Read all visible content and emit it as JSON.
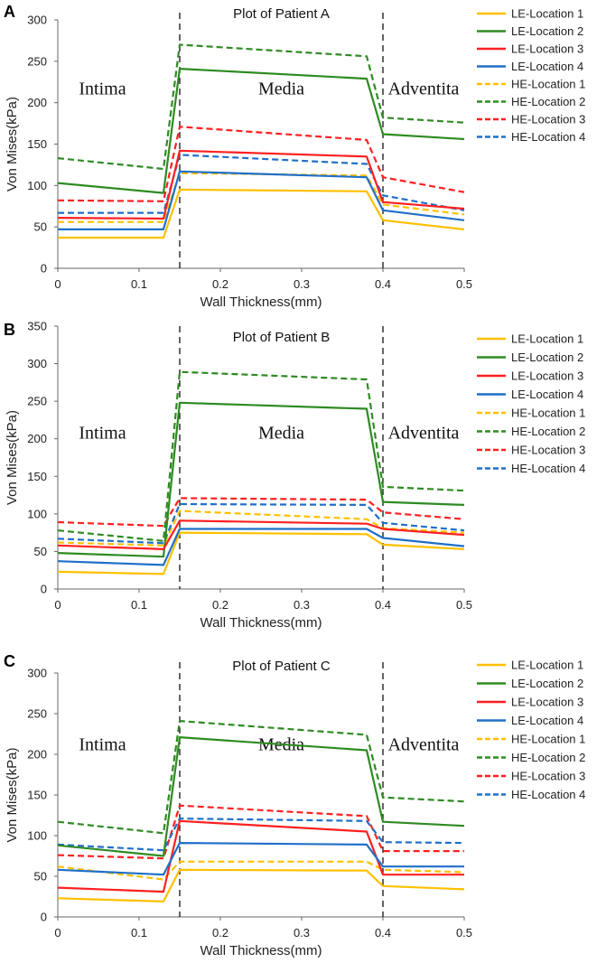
{
  "chart_data": [
    {
      "type": "line",
      "panel_label": "A",
      "title": "Plot of Patient A",
      "xlabel": "Wall Thickness(mm)",
      "ylabel": "Von Mises(kPa)",
      "xlim": [
        0,
        0.5
      ],
      "ylim": [
        0,
        300
      ],
      "xticks": [
        0,
        0.1,
        0.2,
        0.3,
        0.4,
        0.5
      ],
      "yticks": [
        0,
        50,
        100,
        150,
        200,
        250,
        300
      ],
      "dividers": [
        0.15,
        0.4
      ],
      "regions": [
        {
          "label": "Intima",
          "x": 0.055,
          "y": 210
        },
        {
          "label": "Media",
          "x": 0.275,
          "y": 210
        },
        {
          "label": "Adventita",
          "x": 0.45,
          "y": 210
        }
      ],
      "x": [
        0,
        0.13,
        0.15,
        0.38,
        0.4,
        0.5
      ],
      "series": [
        {
          "name": "LE-Location 1",
          "values": [
            37,
            37,
            95,
            93,
            58,
            47
          ]
        },
        {
          "name": "LE-Location 2",
          "values": [
            103,
            91,
            241,
            229,
            162,
            156
          ]
        },
        {
          "name": "LE-Location 3",
          "values": [
            61,
            60,
            142,
            135,
            80,
            72
          ]
        },
        {
          "name": "LE-Location 4",
          "values": [
            47,
            47,
            117,
            110,
            70,
            58
          ]
        },
        {
          "name": "HE-Location 1",
          "values": [
            56,
            56,
            115,
            112,
            77,
            65
          ]
        },
        {
          "name": "HE-Location 2",
          "values": [
            133,
            120,
            270,
            256,
            182,
            176
          ]
        },
        {
          "name": "HE-Location 3",
          "values": [
            82,
            81,
            171,
            155,
            110,
            92
          ]
        },
        {
          "name": "HE-Location 4",
          "values": [
            67,
            67,
            137,
            126,
            88,
            70
          ]
        }
      ]
    },
    {
      "type": "line",
      "panel_label": "B",
      "title": "Plot of Patient B",
      "xlabel": "Wall Thickness(mm)",
      "ylabel": "Von Mises(kPa)",
      "xlim": [
        0,
        0.5
      ],
      "ylim": [
        0,
        350
      ],
      "xticks": [
        0,
        0.1,
        0.2,
        0.3,
        0.4,
        0.5
      ],
      "yticks": [
        0,
        50,
        100,
        150,
        200,
        250,
        300,
        350
      ],
      "dividers": [
        0.15,
        0.4
      ],
      "regions": [
        {
          "label": "Intima",
          "x": 0.055,
          "y": 200
        },
        {
          "label": "Media",
          "x": 0.275,
          "y": 200
        },
        {
          "label": "Adventita",
          "x": 0.45,
          "y": 200
        }
      ],
      "x": [
        0,
        0.13,
        0.15,
        0.38,
        0.4,
        0.5
      ],
      "series": [
        {
          "name": "LE-Location 1",
          "values": [
            23,
            20,
            75,
            73,
            59,
            53
          ]
        },
        {
          "name": "LE-Location 2",
          "values": [
            48,
            43,
            248,
            240,
            116,
            112
          ]
        },
        {
          "name": "LE-Location 3",
          "values": [
            58,
            53,
            91,
            87,
            80,
            72
          ]
        },
        {
          "name": "LE-Location 4",
          "values": [
            37,
            32,
            80,
            80,
            68,
            57
          ]
        },
        {
          "name": "HE-Location 1",
          "values": [
            62,
            58,
            104,
            93,
            81,
            75
          ]
        },
        {
          "name": "HE-Location 2",
          "values": [
            78,
            64,
            289,
            279,
            136,
            131
          ]
        },
        {
          "name": "HE-Location 3",
          "values": [
            89,
            84,
            121,
            119,
            102,
            93
          ]
        },
        {
          "name": "HE-Location 4",
          "values": [
            67,
            61,
            113,
            112,
            88,
            78
          ]
        }
      ]
    },
    {
      "type": "line",
      "panel_label": "C",
      "title": "Plot of Patient C",
      "xlabel": "Wall Thickness(mm)",
      "ylabel": "Von Mises(kPa)",
      "xlim": [
        0,
        0.5
      ],
      "ylim": [
        0,
        300
      ],
      "xticks": [
        0,
        0.1,
        0.2,
        0.3,
        0.4,
        0.5
      ],
      "yticks": [
        0,
        50,
        100,
        150,
        200,
        250,
        300
      ],
      "dividers": [
        0.15,
        0.4
      ],
      "regions": [
        {
          "label": "Intima",
          "x": 0.055,
          "y": 205
        },
        {
          "label": "Media",
          "x": 0.275,
          "y": 205
        },
        {
          "label": "Adventita",
          "x": 0.45,
          "y": 205
        }
      ],
      "x": [
        0,
        0.13,
        0.15,
        0.38,
        0.4,
        0.5
      ],
      "series": [
        {
          "name": "LE-Location 1",
          "values": [
            23,
            19,
            58,
            57,
            38,
            34
          ]
        },
        {
          "name": "LE-Location 2",
          "values": [
            88,
            75,
            221,
            205,
            117,
            112
          ]
        },
        {
          "name": "LE-Location 3",
          "values": [
            36,
            31,
            118,
            105,
            52,
            52
          ]
        },
        {
          "name": "LE-Location 4",
          "values": [
            58,
            52,
            91,
            89,
            62,
            62
          ]
        },
        {
          "name": "HE-Location 1",
          "values": [
            62,
            46,
            68,
            68,
            58,
            55
          ]
        },
        {
          "name": "HE-Location 2",
          "values": [
            117,
            103,
            241,
            224,
            147,
            142
          ]
        },
        {
          "name": "HE-Location 3",
          "values": [
            76,
            72,
            137,
            124,
            81,
            81
          ]
        },
        {
          "name": "HE-Location 4",
          "values": [
            89,
            82,
            121,
            118,
            92,
            91
          ]
        }
      ]
    }
  ],
  "series_styles": {
    "LE-Location 1": {
      "color": "#FFC000",
      "dash": "solid"
    },
    "LE-Location 2": {
      "color": "#2E8B22",
      "dash": "solid"
    },
    "LE-Location 3": {
      "color": "#FF2020",
      "dash": "solid"
    },
    "LE-Location 4": {
      "color": "#1F6FC8",
      "dash": "solid"
    },
    "HE-Location 1": {
      "color": "#FFC000",
      "dash": "dashed"
    },
    "HE-Location 2": {
      "color": "#2E8B22",
      "dash": "dashed"
    },
    "HE-Location 3": {
      "color": "#FF2020",
      "dash": "dashed"
    },
    "HE-Location 4": {
      "color": "#1F6FC8",
      "dash": "dashed"
    }
  }
}
